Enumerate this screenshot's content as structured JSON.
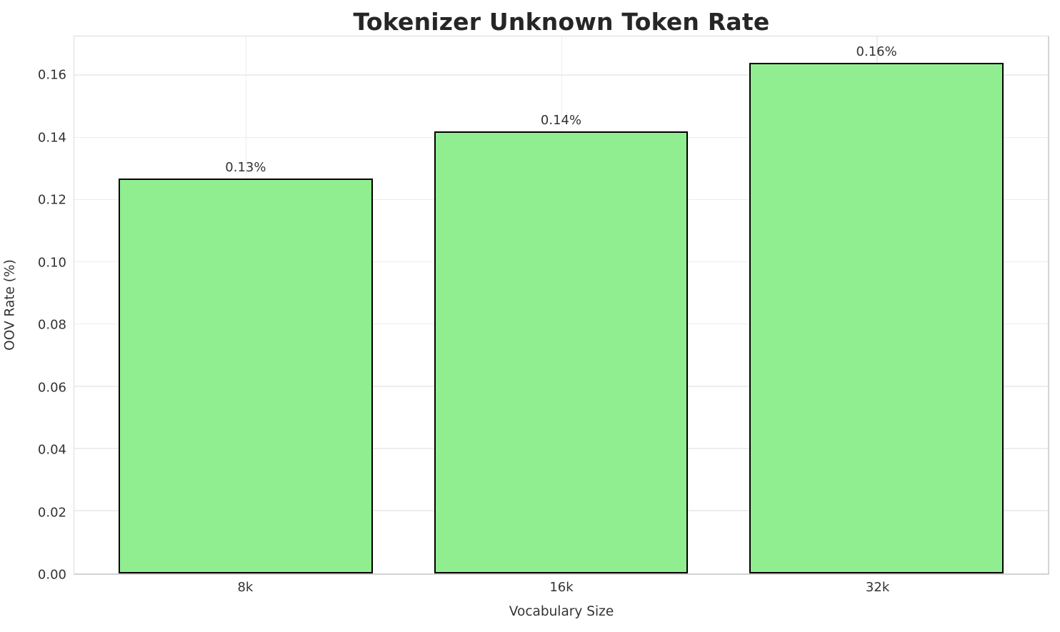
{
  "chart_data": {
    "type": "bar",
    "title": "Tokenizer Unknown Token Rate",
    "xlabel": "Vocabulary Size",
    "ylabel": "OOV Rate (%)",
    "categories": [
      "8k",
      "16k",
      "32k"
    ],
    "values": [
      0.127,
      0.142,
      0.164
    ],
    "bar_labels": [
      "0.13%",
      "0.14%",
      "0.16%"
    ],
    "ytick_labels": [
      "0.00",
      "0.02",
      "0.04",
      "0.06",
      "0.08",
      "0.10",
      "0.12",
      "0.14",
      "0.16"
    ],
    "yticks": [
      0.0,
      0.02,
      0.04,
      0.06,
      0.08,
      0.1,
      0.12,
      0.14,
      0.16
    ],
    "ylim": [
      0,
      0.1726
    ],
    "grid": true,
    "legend": "none",
    "colors": {
      "bar_fill": "#90EE90",
      "bar_edge": "#000000",
      "grid_line": "#ededed",
      "axis_text": "#333333",
      "title_text": "#262626",
      "spine": "#d6d6d6"
    }
  }
}
